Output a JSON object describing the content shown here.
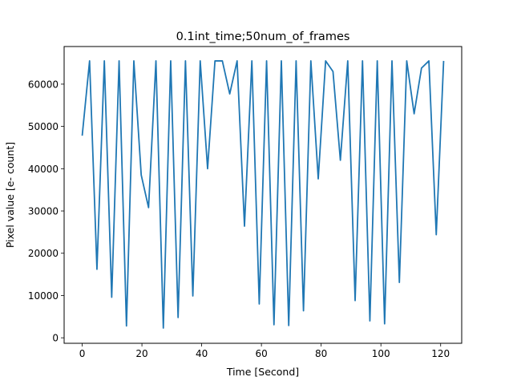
{
  "chart_data": {
    "type": "line",
    "title": "0.1int_time;50num_of_frames",
    "xlabel": "Time [Second]",
    "ylabel": "Pixel value [e- count]",
    "xlim": [
      -6.05,
      127.05
    ],
    "ylim": [
      -1300,
      68900
    ],
    "xticks": [
      0,
      20,
      40,
      60,
      80,
      100,
      120
    ],
    "yticks": [
      0,
      10000,
      20000,
      30000,
      40000,
      50000,
      60000
    ],
    "color": "#1f77b4",
    "series": [
      {
        "x": [
          0.0,
          2.47,
          4.94,
          7.41,
          9.88,
          12.35,
          14.82,
          17.29,
          19.76,
          22.22,
          24.69,
          27.16,
          29.63,
          32.1,
          34.57,
          37.04,
          39.51,
          41.98,
          44.45,
          46.92,
          49.39,
          51.86,
          54.33,
          56.8,
          59.27,
          61.73,
          64.2,
          66.67,
          69.14,
          71.61,
          74.08,
          76.55,
          79.02,
          81.49,
          83.96,
          86.43,
          88.9,
          91.37,
          93.84,
          96.31,
          98.78,
          101.24,
          103.71,
          106.18,
          108.65,
          111.12,
          113.59,
          116.06,
          118.53,
          121.0
        ],
        "y": [
          47800,
          65500,
          16200,
          65500,
          9600,
          65500,
          2800,
          65500,
          38500,
          30800,
          65500,
          2300,
          65500,
          4800,
          65500,
          9900,
          65500,
          40000,
          65500,
          65500,
          57700,
          65500,
          26400,
          65500,
          8000,
          65500,
          3100,
          65500,
          2900,
          65500,
          6400,
          65500,
          37600,
          65500,
          63000,
          42000,
          65500,
          8800,
          65500,
          4000,
          65500,
          3300,
          65500,
          13100,
          65500,
          53000,
          63800,
          65500,
          24400,
          65500
        ]
      }
    ]
  }
}
